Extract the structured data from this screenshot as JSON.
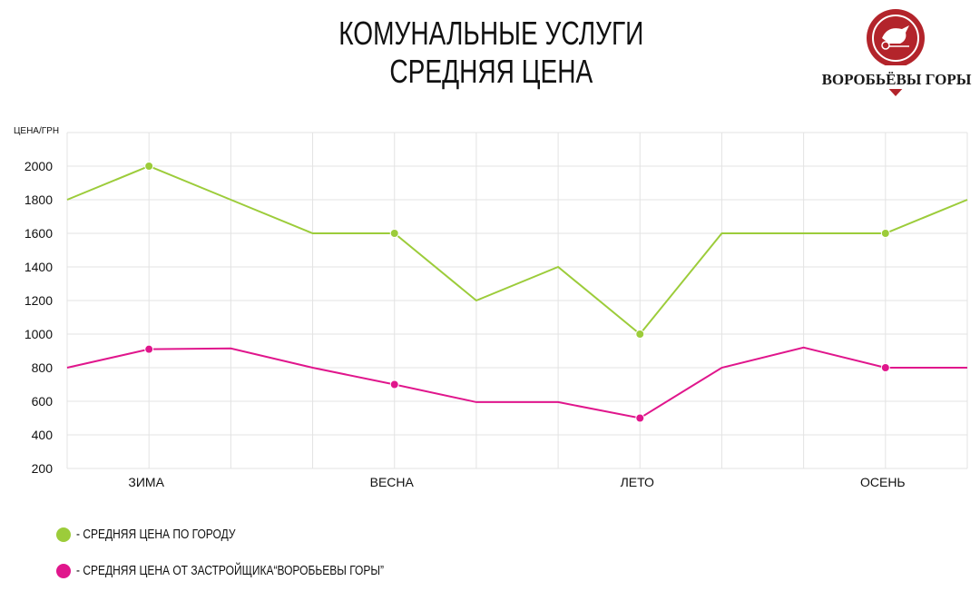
{
  "title": {
    "line1": "КОМУНАЛЬНЫЕ УСЛУГИ",
    "line2": "СРЕДНЯЯ ЦЕНА"
  },
  "logo": {
    "text": "ВОРОБЬЁВЫ ГОРЫ",
    "color": "#b3242b"
  },
  "colors": {
    "city": "#9ccc3a",
    "developer": "#e0168c",
    "grid": "#e3e3e3"
  },
  "chart_data": {
    "type": "line",
    "ylabel": "ЦЕНА/ГРН",
    "xlabel": "",
    "ylim": [
      200,
      2200
    ],
    "yticks": [
      200,
      400,
      600,
      800,
      1000,
      1200,
      1400,
      1600,
      1800,
      2000
    ],
    "x": [
      0,
      1,
      2,
      3,
      4,
      5,
      6,
      7,
      8,
      9,
      10,
      11
    ],
    "categories": [
      "ЗИМА",
      "ВЕСНА",
      "ЛЕТО",
      "ОСЕНЬ"
    ],
    "category_positions": [
      1,
      4,
      7,
      10
    ],
    "grid": true,
    "series": [
      {
        "name": "- СРЕДНЯЯ ЦЕНА ПО ГОРОДУ",
        "color": "#9ccc3a",
        "values": [
          1800,
          2000,
          1800,
          1600,
          1600,
          1200,
          1400,
          1000,
          1600,
          1600,
          1600,
          1800
        ],
        "markers": [
          1,
          4,
          7,
          10
        ]
      },
      {
        "name": "- СРЕДНЯЯ ЦЕНА ОТ ЗАСТРОЙЩИКА“ВОРОБЬЕВЫ ГОРЫ”",
        "color": "#e0168c",
        "values": [
          800,
          910,
          915,
          800,
          700,
          595,
          595,
          500,
          800,
          920,
          800,
          800
        ],
        "markers": [
          1,
          4,
          7,
          10
        ]
      }
    ]
  }
}
